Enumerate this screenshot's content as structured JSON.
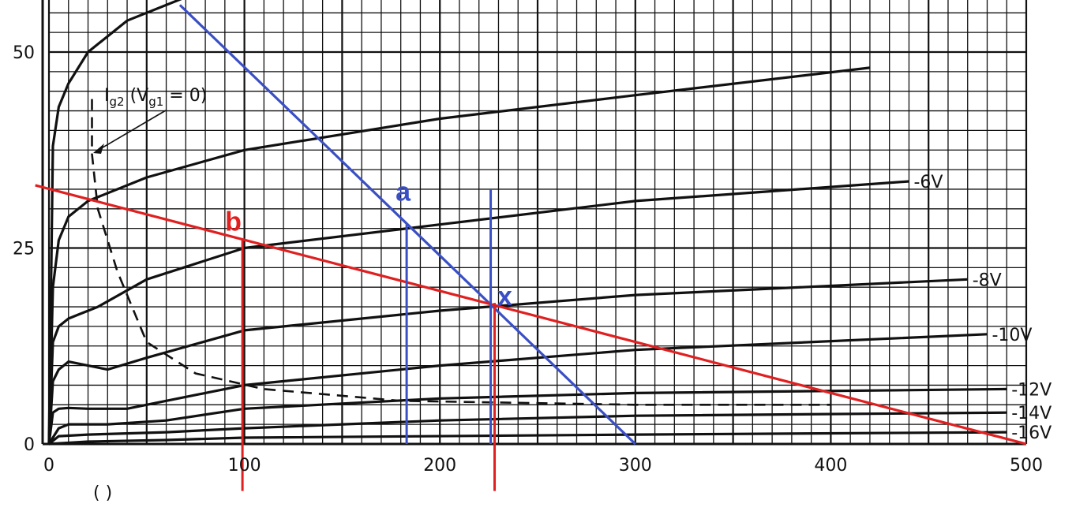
{
  "chart_data": {
    "type": "line",
    "xlim": [
      0,
      500
    ],
    "ylim": [
      0,
      57
    ],
    "x_ticks": [
      0,
      100,
      200,
      300,
      400,
      500
    ],
    "y_ticks": [
      0,
      25,
      50
    ],
    "grid": true,
    "series": [
      {
        "name": "",
        "points": [
          [
            0,
            0
          ],
          [
            2,
            38
          ],
          [
            5,
            43
          ],
          [
            10,
            46
          ],
          [
            20,
            50
          ],
          [
            40,
            54
          ],
          [
            70,
            57
          ],
          [
            100,
            59
          ]
        ]
      },
      {
        "name": "",
        "points": [
          [
            0,
            0
          ],
          [
            2,
            20
          ],
          [
            5,
            26
          ],
          [
            10,
            29
          ],
          [
            20,
            31
          ],
          [
            50,
            34
          ],
          [
            100,
            37.5
          ],
          [
            200,
            41.5
          ],
          [
            300,
            44.5
          ],
          [
            420,
            48
          ]
        ]
      },
      {
        "name": "-6V",
        "points": [
          [
            0,
            0
          ],
          [
            2,
            13
          ],
          [
            5,
            15
          ],
          [
            10,
            16
          ],
          [
            15,
            16.5
          ],
          [
            25,
            17.5
          ],
          [
            50,
            21
          ],
          [
            100,
            25
          ],
          [
            200,
            28
          ],
          [
            300,
            31
          ],
          [
            440,
            33.5
          ]
        ]
      },
      {
        "name": "-8V",
        "points": [
          [
            0,
            0
          ],
          [
            2,
            8
          ],
          [
            5,
            9.5
          ],
          [
            10,
            10.5
          ],
          [
            20,
            10
          ],
          [
            30,
            9.5
          ],
          [
            50,
            11
          ],
          [
            100,
            14.5
          ],
          [
            200,
            17
          ],
          [
            300,
            19
          ],
          [
            470,
            21
          ]
        ]
      },
      {
        "name": "-10V",
        "points": [
          [
            0,
            0
          ],
          [
            2,
            4
          ],
          [
            5,
            4.5
          ],
          [
            10,
            4.6
          ],
          [
            20,
            4.5
          ],
          [
            40,
            4.5
          ],
          [
            60,
            5.5
          ],
          [
            100,
            7.5
          ],
          [
            200,
            10
          ],
          [
            300,
            12
          ],
          [
            480,
            14
          ]
        ]
      },
      {
        "name": "-12V",
        "points": [
          [
            0,
            0
          ],
          [
            5,
            2
          ],
          [
            10,
            2.5
          ],
          [
            30,
            2.5
          ],
          [
            60,
            3
          ],
          [
            100,
            4.5
          ],
          [
            200,
            5.8
          ],
          [
            300,
            6.5
          ],
          [
            490,
            7
          ]
        ]
      },
      {
        "name": "-14V",
        "points": [
          [
            0,
            0
          ],
          [
            5,
            1
          ],
          [
            20,
            1.2
          ],
          [
            60,
            1.5
          ],
          [
            100,
            2
          ],
          [
            200,
            3
          ],
          [
            300,
            3.6
          ],
          [
            490,
            4
          ]
        ]
      },
      {
        "name": "-16V",
        "points": [
          [
            0,
            0
          ],
          [
            20,
            0.3
          ],
          [
            60,
            0.5
          ],
          [
            100,
            0.8
          ],
          [
            300,
            1.2
          ],
          [
            490,
            1.5
          ]
        ]
      }
    ],
    "series_labels": [
      "-6V",
      "-8V",
      "-10V",
      "-12V",
      "-14V",
      "-16V"
    ],
    "ig2_curve": {
      "label_parts": [
        "I",
        "g2",
        " (V",
        "g1",
        " = 0)"
      ],
      "points": [
        [
          22,
          44
        ],
        [
          22,
          37
        ],
        [
          25,
          30
        ],
        [
          35,
          22
        ],
        [
          50,
          13
        ],
        [
          75,
          9
        ],
        [
          110,
          7
        ],
        [
          180,
          5.5
        ],
        [
          300,
          5
        ],
        [
          400,
          5
        ]
      ]
    },
    "annotations": {
      "blue_load_line": {
        "from": [
          67,
          56
        ],
        "to": [
          300,
          0
        ],
        "color": "#3a4fc4"
      },
      "red_load_line": {
        "from": [
          -7,
          33
        ],
        "to": [
          500,
          0
        ],
        "color": "#e02020"
      },
      "blue_vertical_a": {
        "x": 183,
        "y_from": 0,
        "y_to": 28,
        "color": "#3a4fc4"
      },
      "blue_vertical_x": {
        "x": 226,
        "y_from": 0,
        "y_to": 32.5,
        "color": "#3a4fc4"
      },
      "red_vertical_b": {
        "x": 99,
        "y_from": 26,
        "y_to": -6,
        "color": "#e02020"
      },
      "red_vertical_x": {
        "x": 228,
        "y_from": 18,
        "y_to": -6,
        "color": "#e02020"
      },
      "points": [
        {
          "label": "a",
          "x": 183,
          "y": 28,
          "color": "#3a4fc4"
        },
        {
          "label": "b",
          "x": 99,
          "y": 26,
          "color": "#e02020"
        },
        {
          "label": "x",
          "x": 227,
          "y": 17.5,
          "color": "#3a4fc4"
        }
      ]
    },
    "bottom_fragment": "(  )"
  }
}
